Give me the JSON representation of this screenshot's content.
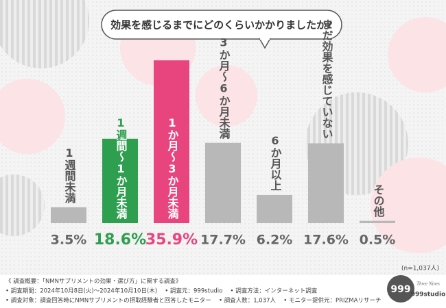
{
  "chart_data": {
    "type": "bar",
    "title": "効果を感じるまでにどのくらいかかりましたか?",
    "categories": [
      "1週間未満",
      "1週間〜1か月未満",
      "1か月〜3か月未満",
      "3か月〜6か月未満",
      "6か月以上",
      "まだ効果を感じていない",
      "その他"
    ],
    "values": [
      3.5,
      18.6,
      35.9,
      17.7,
      6.2,
      17.6,
      0.5
    ],
    "value_labels": [
      "3.5%",
      "18.6%",
      "35.9%",
      "17.7%",
      "6.2%",
      "17.6%",
      "0.5%"
    ],
    "colors": [
      "#b8b8b8",
      "#2e9e4f",
      "#e8457f",
      "#b8b8b8",
      "#b8b8b8",
      "#b8b8b8",
      "#b8b8b8"
    ],
    "highlight": [
      false,
      true,
      true,
      false,
      false,
      false,
      false
    ],
    "ylim": [
      0,
      40
    ],
    "note": "(n=1,037人)"
  },
  "footer": {
    "heading": "《 調査概要：「NMNサプリメントの効果・選び方」に関する調査》",
    "lines": [
      "• 調査期間：2024年10月8日(火)～2024年10月10日(木)　 • 調査元：999studio　 • 調査方法：インターネット調査",
      "• 調査対象：調査回答時にNMNサプリメントの摂取経験者と回答したモニター　 • 調査人数：1,037人　 • モニター提供元：PRIZMAリサーチ"
    ]
  },
  "logo": {
    "mark": "999",
    "tagline": "Three Nines",
    "name": "999studio"
  }
}
